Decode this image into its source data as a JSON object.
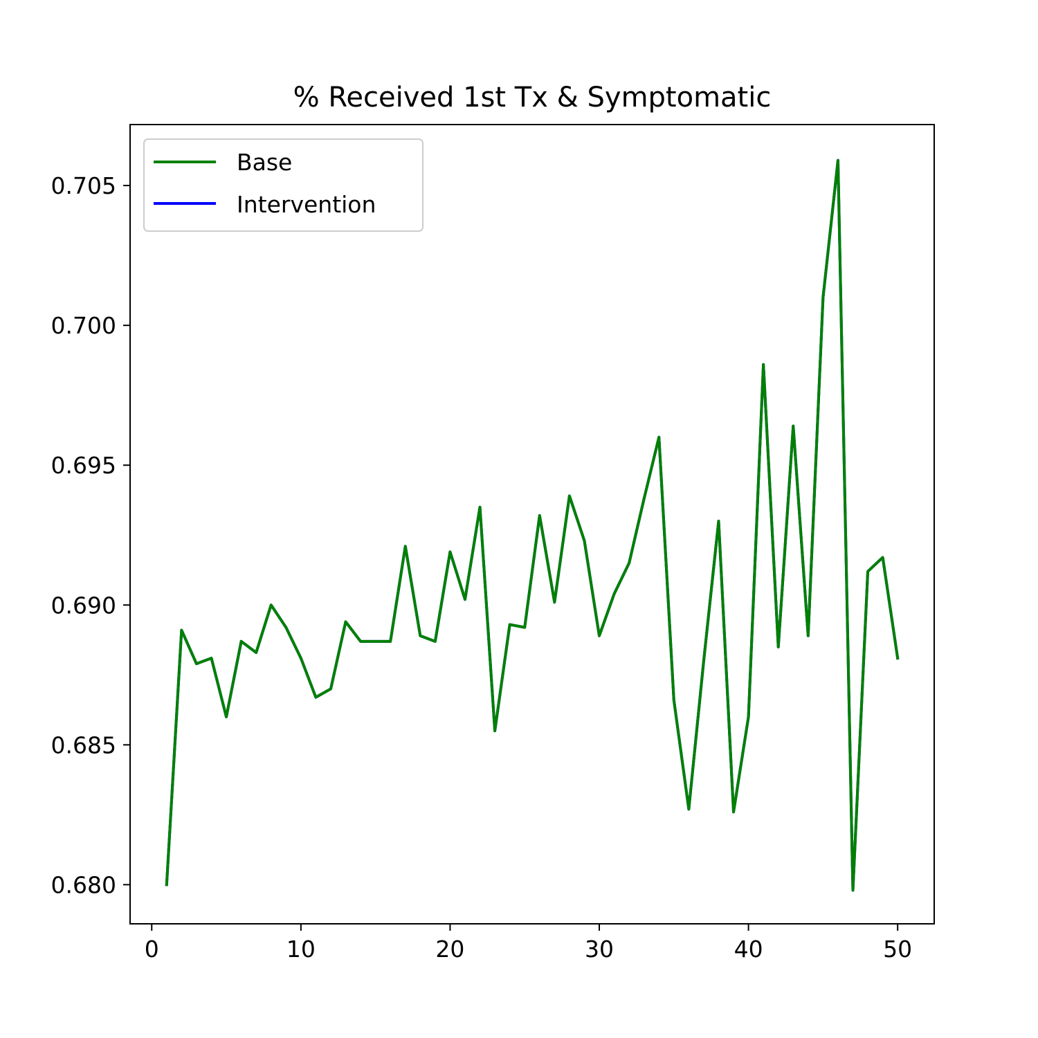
{
  "chart_data": {
    "type": "line",
    "title": "% Received 1st Tx & Symptomatic",
    "xlabel": "",
    "ylabel": "",
    "xlim": [
      -1.45,
      52.45
    ],
    "ylim": [
      0.6786,
      0.70718
    ],
    "xticks": [
      0,
      10,
      20,
      30,
      40,
      50
    ],
    "xtick_labels": [
      "0",
      "10",
      "20",
      "30",
      "40",
      "50"
    ],
    "yticks": [
      0.68,
      0.685,
      0.69,
      0.695,
      0.7,
      0.705
    ],
    "ytick_labels": [
      "0.680",
      "0.685",
      "0.690",
      "0.695",
      "0.700",
      "0.705"
    ],
    "grid": false,
    "legend_position": "upper-left",
    "x": [
      1,
      2,
      3,
      4,
      5,
      6,
      7,
      8,
      9,
      10,
      11,
      12,
      13,
      14,
      15,
      16,
      17,
      18,
      19,
      20,
      21,
      22,
      23,
      24,
      25,
      26,
      27,
      28,
      29,
      30,
      31,
      32,
      33,
      34,
      35,
      36,
      37,
      38,
      39,
      40,
      41,
      42,
      43,
      44,
      45,
      46,
      47,
      48,
      49,
      50
    ],
    "series": [
      {
        "name": "Base",
        "color": "#008000",
        "values": [
          0.68,
          0.6891,
          0.6879,
          0.6881,
          0.686,
          0.6887,
          0.6883,
          0.69,
          0.6892,
          0.6881,
          0.6867,
          0.687,
          0.6894,
          0.6887,
          0.6887,
          0.6887,
          0.6921,
          0.6889,
          0.6887,
          0.6919,
          0.6902,
          0.6935,
          0.6855,
          0.6893,
          0.6892,
          0.6932,
          0.6901,
          0.6939,
          0.6923,
          0.6889,
          0.6904,
          0.6915,
          0.6938,
          0.696,
          0.6866,
          0.6827,
          0.688,
          0.693,
          0.6826,
          0.686,
          0.6986,
          0.6885,
          0.6964,
          0.6889,
          0.701,
          0.7059,
          0.6798,
          0.6912,
          0.6917,
          0.6881
        ]
      },
      {
        "name": "Intervention",
        "color": "#0000ff",
        "values": [
          0.68,
          0.6891,
          0.6879,
          0.6881,
          0.686,
          0.6887,
          0.6883,
          0.69,
          0.6892,
          0.6881,
          0.6867,
          0.687,
          0.6894,
          0.6887,
          0.6887,
          0.6887,
          0.6921,
          0.6889,
          0.6887,
          0.6919,
          0.6902,
          0.6935,
          0.6855,
          0.6893,
          0.6892,
          0.6932,
          0.6901,
          0.6939,
          0.6923,
          0.6889,
          0.6904,
          0.6915,
          0.6938,
          0.696,
          0.6866,
          0.6827,
          0.688,
          0.693,
          0.6826,
          0.686,
          0.6986,
          0.6885,
          0.6964,
          0.6889,
          0.701,
          0.7059,
          0.6798,
          0.6912,
          0.6917,
          0.6881
        ]
      }
    ]
  }
}
